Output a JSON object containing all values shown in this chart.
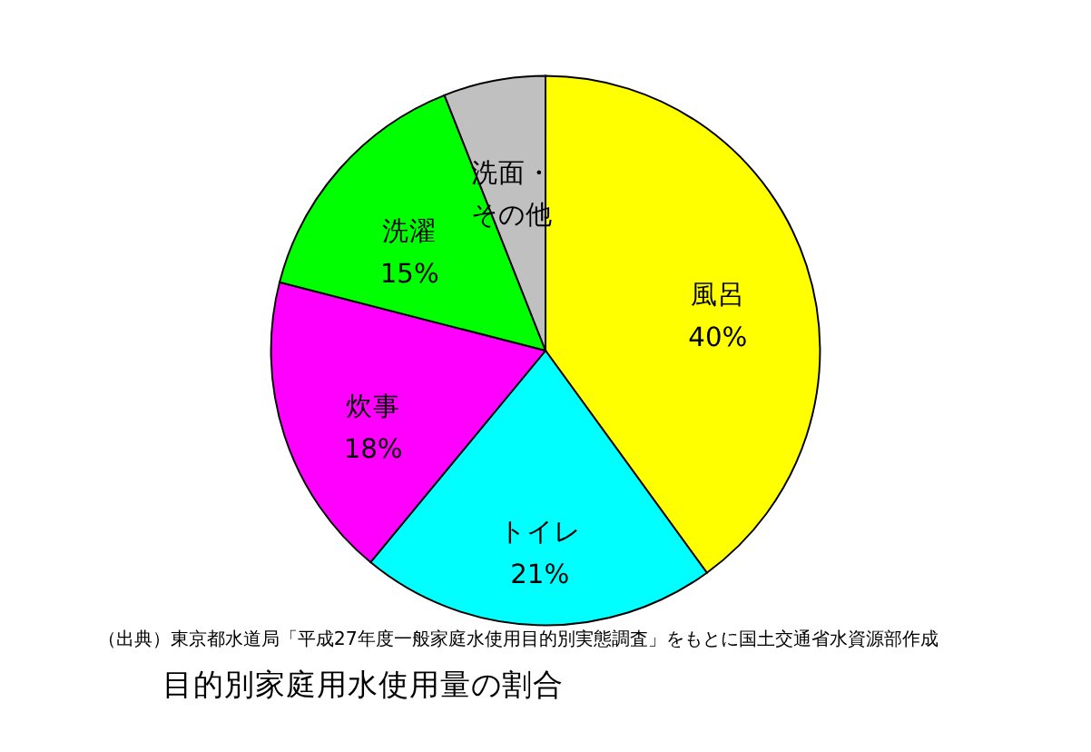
{
  "chart_data": {
    "type": "pie",
    "title": "目的別家庭用水使用量の割合",
    "categories": [
      "風呂",
      "トイレ",
      "炊事",
      "洗濯",
      "洗面・その他"
    ],
    "values": [
      40,
      21,
      18,
      15,
      6
    ],
    "colors": [
      "#ffff00",
      "#00ffff",
      "#ff00ff",
      "#00ff00",
      "#c0c0c0"
    ],
    "value_labels": [
      "40%",
      "21%",
      "18%",
      "15%",
      null
    ],
    "annotations": [
      "（出典）東京都水道局「平成27年度一般家庭水使用目的別実態調査」をもとに国土交通省水資源部作成"
    ],
    "legend": null
  }
}
